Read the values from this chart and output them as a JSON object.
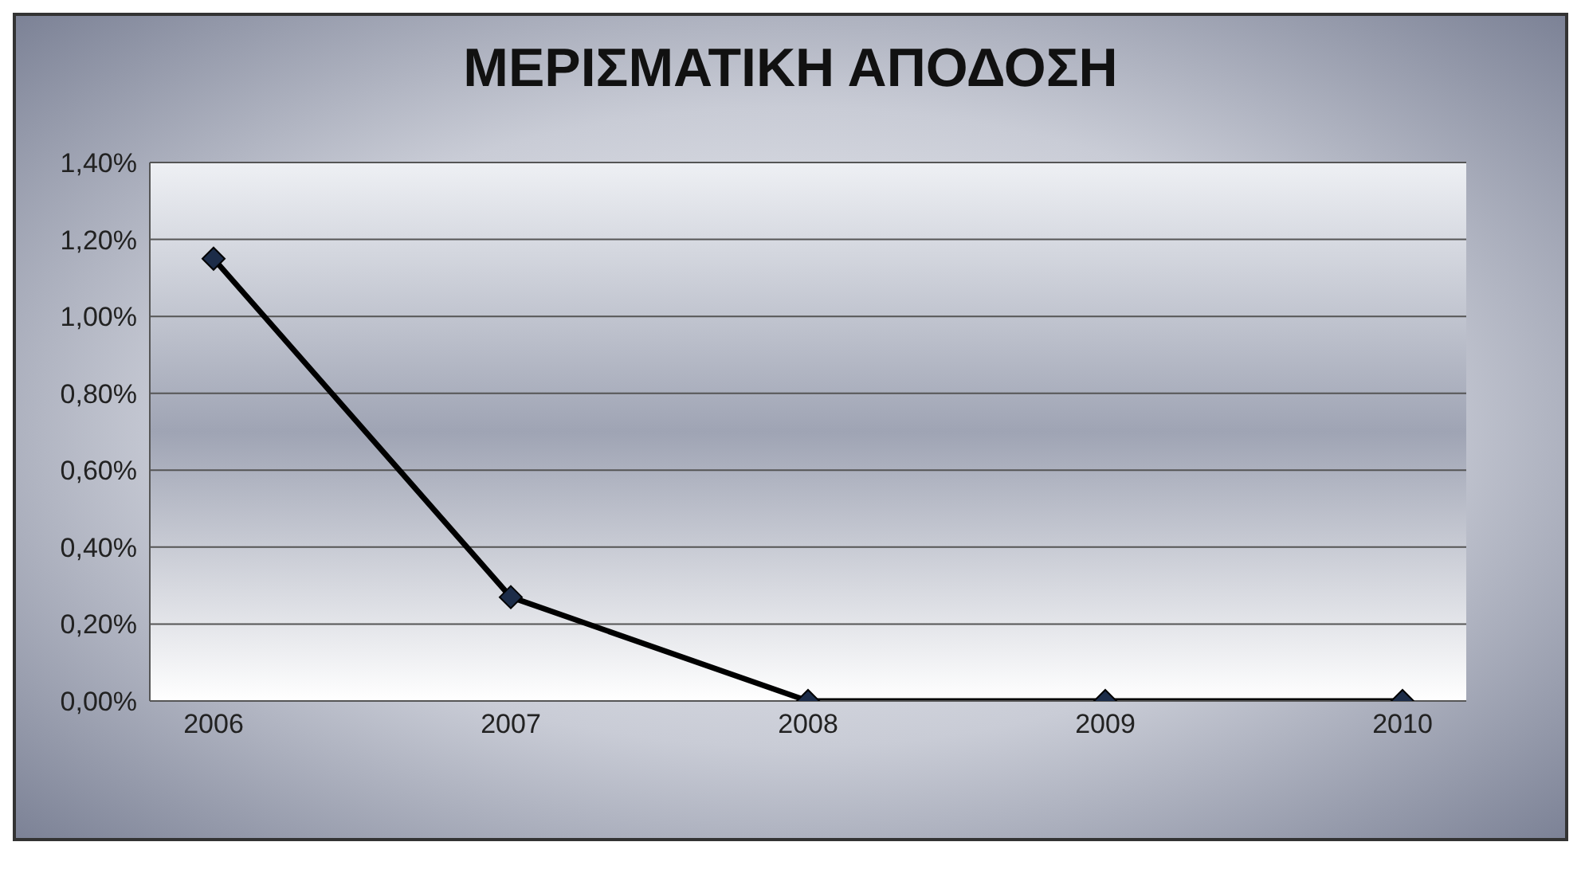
{
  "chart_data": {
    "type": "line",
    "title": "ΜΕΡΙΣΜΑΤΙΚΗ ΑΠΟΔΟΣΗ",
    "categories": [
      "2006",
      "2007",
      "2008",
      "2009",
      "2010"
    ],
    "series": [
      {
        "color": "#000000",
        "values": [
          1.15,
          0.27,
          0,
          0,
          0
        ]
      }
    ],
    "ylim": [
      0,
      1.4
    ],
    "yticks": [
      {
        "value": 0,
        "label": "0,00%"
      },
      {
        "value": 0.2,
        "label": "0,20%"
      },
      {
        "value": 0.4,
        "label": "0,40%"
      },
      {
        "value": 0.6,
        "label": "0,60%"
      },
      {
        "value": 0.8,
        "label": "0,80%"
      },
      {
        "value": 1,
        "label": "1,00%"
      },
      {
        "value": 1.2,
        "label": "1,20%"
      },
      {
        "value": 1.4,
        "label": "1,40%"
      }
    ],
    "grid": "y",
    "marker": "diamond",
    "line_style": "solid"
  }
}
